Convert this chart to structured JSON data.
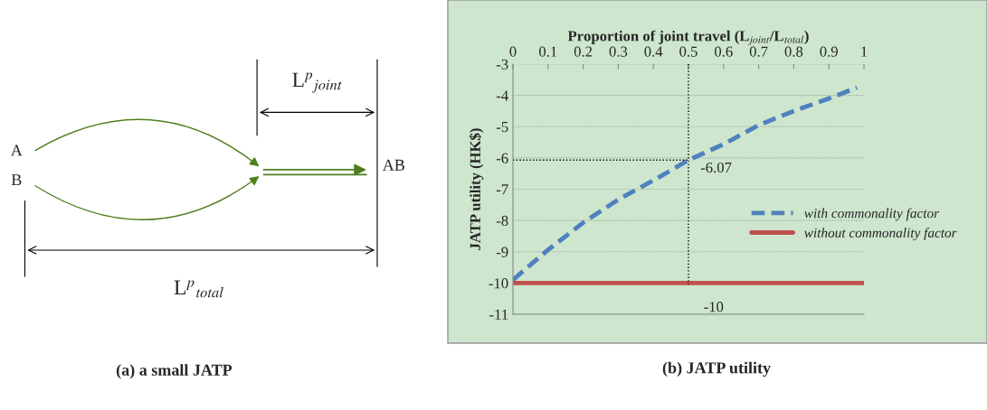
{
  "chart_data": [
    {
      "type": "other",
      "title": "(a) a small JATP",
      "annotations": [
        "A",
        "B",
        "AB",
        "L$^{p}$$_{joint}$",
        "L$^{p}$$_{total}$"
      ]
    },
    {
      "type": "line",
      "title": "(b) JATP utility",
      "xlabel": "Proportion of joint travel (L$_{joint}$/L$_{total}$)",
      "ylabel": "JATP utility (HK$)",
      "x": [
        0,
        0.1,
        0.2,
        0.3,
        0.4,
        0.5,
        0.6,
        0.7,
        0.8,
        0.9,
        0.98
      ],
      "series": [
        {
          "name": "with commonality factor",
          "color": "#4f81bd",
          "line_style": "dashed",
          "values": [
            -9.9,
            -8.94,
            -8.07,
            -7.33,
            -6.72,
            -6.07,
            -5.56,
            -4.95,
            -4.5,
            -4.1,
            -3.75
          ]
        },
        {
          "name": "without commonality factor",
          "color": "#c0504d",
          "line_style": "solid",
          "x": [
            0,
            1
          ],
          "values": [
            -10,
            -10
          ]
        }
      ],
      "xlim": [
        0,
        1
      ],
      "xticks": [
        0,
        0.1,
        0.2,
        0.3,
        0.4,
        0.5,
        0.6,
        0.7,
        0.8,
        0.9,
        1
      ],
      "ylim": [
        -11,
        -3
      ],
      "yticks": [
        -11,
        -10,
        -9,
        -8,
        -7,
        -6,
        -5,
        -4,
        -3
      ],
      "grid": "y",
      "legend": "right",
      "marker": "none",
      "ref_lines": [
        {
          "axis": "x",
          "value": 0.5,
          "color": "#000000",
          "line_style": "dotted"
        },
        {
          "axis": "y",
          "value": -6.07,
          "color": "#000000",
          "line_style": "dotted"
        }
      ],
      "annotations": [
        {
          "text": "-6.07",
          "x": 0.5,
          "y": -6.07
        },
        {
          "text": "-10",
          "x": 0.5,
          "y": -10
        }
      ]
    }
  ]
}
